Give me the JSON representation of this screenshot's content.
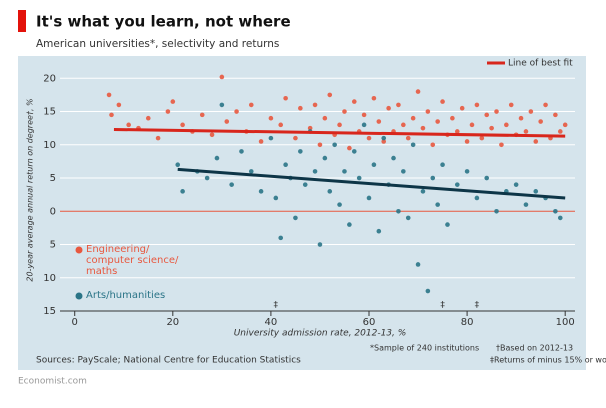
{
  "chart_data": {
    "type": "scatter",
    "title": "It's what you learn, not where",
    "subtitle": "American universities*, selectivity and returns",
    "y_label": "20-year average annual return on degree†, %",
    "x_label": "University admission rate, 2012-13, %",
    "fit_legend": "Line of best fit",
    "xlim": [
      -3,
      102
    ],
    "ylim": [
      -15,
      22
    ],
    "xticks": [
      0,
      20,
      40,
      60,
      80,
      100
    ],
    "yticks": [
      {
        "value": -15,
        "label": "15"
      },
      {
        "value": -10,
        "label": "10"
      },
      {
        "value": -5,
        "label": "5"
      },
      0,
      5,
      10,
      15,
      20
    ],
    "grid": true,
    "series": [
      {
        "name": "Engineering/ computer science/ maths",
        "color": "#e8583f",
        "fit_color": "#d8261c",
        "x": [
          7,
          7.5,
          9,
          11,
          13,
          15,
          17,
          19,
          20,
          22,
          24,
          26,
          28,
          30,
          31,
          33,
          35,
          36,
          38,
          40,
          42,
          43,
          45,
          46,
          48,
          49,
          50,
          51,
          52,
          53,
          54,
          55,
          56,
          57,
          58,
          59,
          60,
          61,
          62,
          63,
          64,
          65,
          66,
          67,
          68,
          69,
          70,
          71,
          72,
          73,
          74,
          75,
          76,
          77,
          78,
          79,
          80,
          81,
          82,
          83,
          84,
          85,
          86,
          87,
          88,
          89,
          90,
          91,
          92,
          93,
          94,
          95,
          96,
          97,
          98,
          99,
          100
        ],
        "values": [
          17.5,
          14.5,
          16,
          13,
          12.5,
          14,
          11,
          15,
          16.5,
          13,
          12,
          14.5,
          11.5,
          20.2,
          13.5,
          15,
          12,
          16,
          10.5,
          14,
          13,
          17,
          11,
          15.5,
          12.5,
          16,
          10,
          14,
          17.5,
          11.5,
          13,
          15,
          9.5,
          16.5,
          12,
          14.5,
          11,
          17,
          13.5,
          10.5,
          15.5,
          12,
          16,
          13,
          11,
          14,
          18,
          12.5,
          15,
          10,
          13.5,
          16.5,
          11.5,
          14,
          12,
          15.5,
          10.5,
          13,
          16,
          11,
          14.5,
          12.5,
          15,
          10,
          13,
          16,
          11.5,
          14,
          12,
          15,
          10.5,
          13.5,
          16,
          11,
          14.5,
          12,
          13
        ],
        "fit": {
          "x": [
            8,
            100
          ],
          "y": [
            12.3,
            11.3
          ]
        }
      },
      {
        "name": "Arts/humanities",
        "color": "#2a7487",
        "fit_color": "#0d3547",
        "x": [
          21,
          22,
          25,
          27,
          29,
          30,
          32,
          34,
          36,
          38,
          40,
          41,
          42,
          43,
          44,
          45,
          46,
          47,
          48,
          49,
          50,
          51,
          52,
          53,
          54,
          55,
          56,
          57,
          58,
          59,
          60,
          61,
          62,
          63,
          64,
          65,
          66,
          67,
          68,
          69,
          70,
          71,
          72,
          73,
          74,
          75,
          76,
          78,
          80,
          82,
          84,
          86,
          88,
          90,
          92,
          94,
          96,
          98,
          99
        ],
        "values": [
          7,
          3,
          6,
          5,
          8,
          16,
          4,
          9,
          6,
          3,
          11,
          2,
          -4,
          7,
          5,
          -1,
          9,
          4,
          12,
          6,
          -5,
          8,
          3,
          10,
          1,
          6,
          -2,
          9,
          5,
          13,
          2,
          7,
          -3,
          11,
          4,
          8,
          0,
          6,
          -1,
          10,
          -8,
          3,
          -12,
          5,
          1,
          7,
          -2,
          4,
          6,
          2,
          5,
          0,
          3,
          4,
          1,
          3,
          2,
          0,
          -1
        ],
        "fit": {
          "x": [
            21,
            100
          ],
          "y": [
            6.3,
            2
          ]
        }
      }
    ],
    "offscale": {
      "label": "‡",
      "x": [
        41,
        75,
        82
      ]
    },
    "notes": [
      "*Sample of 240 institutions",
      "†Based on 2012-13",
      "‡Returns of minus 15% or worse"
    ],
    "source": "Sources: PayScale; National Centre for Education Statistics",
    "credit": "Economist.com"
  }
}
